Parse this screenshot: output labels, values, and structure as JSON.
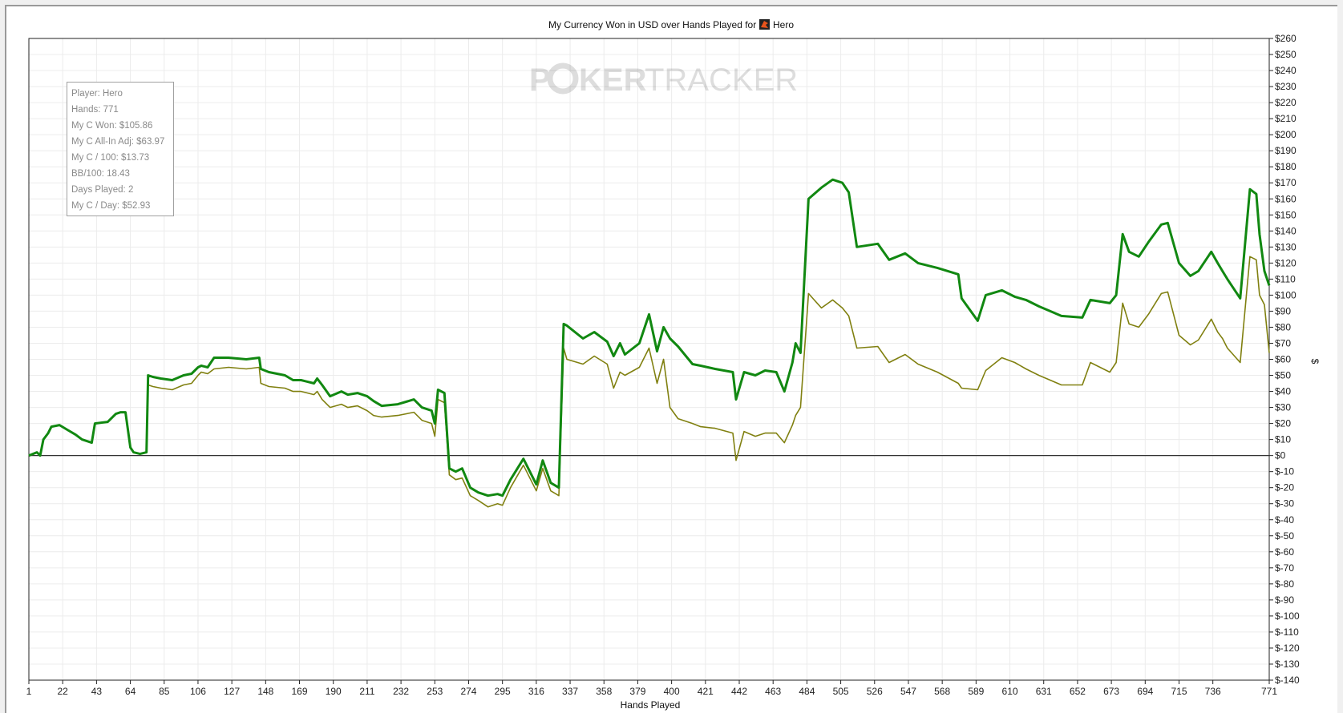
{
  "chart_data": {
    "type": "line",
    "title": "My Currency Won in USD over Hands Played for",
    "title_player": "Hero",
    "watermark_left": "P",
    "watermark_mid": "KER",
    "watermark_right": "TRACKER",
    "xlabel": "Hands Played",
    "ylabel": "$",
    "xlim": [
      1,
      771
    ],
    "ylim": [
      -140,
      260
    ],
    "x_ticks": [
      1,
      22,
      43,
      64,
      85,
      106,
      127,
      148,
      169,
      190,
      211,
      232,
      253,
      274,
      295,
      316,
      337,
      358,
      379,
      400,
      421,
      442,
      463,
      484,
      505,
      526,
      547,
      568,
      589,
      610,
      631,
      652,
      673,
      694,
      715,
      736,
      771
    ],
    "y_ticks": [
      260,
      250,
      240,
      230,
      220,
      210,
      200,
      190,
      180,
      170,
      160,
      150,
      140,
      130,
      120,
      110,
      100,
      90,
      80,
      70,
      60,
      50,
      40,
      30,
      20,
      10,
      0,
      -10,
      -20,
      -30,
      -40,
      -50,
      -60,
      -70,
      -80,
      -90,
      -100,
      -110,
      -120,
      -130,
      -140
    ],
    "y_tick_labels": [
      "$260",
      "$250",
      "$240",
      "$230",
      "$220",
      "$210",
      "$200",
      "$190",
      "$180",
      "$170",
      "$160",
      "$150",
      "$140",
      "$130",
      "$120",
      "$110",
      "$100",
      "$90",
      "$80",
      "$70",
      "$60",
      "$50",
      "$40",
      "$30",
      "$20",
      "$10",
      "$0",
      "$-10",
      "$-20",
      "$-30",
      "$-40",
      "$-50",
      "$-60",
      "$-70",
      "$-80",
      "$-90",
      "$-100",
      "$-110",
      "$-120",
      "$-130",
      "$-140"
    ],
    "grid": true,
    "colors": {
      "won": "#118811",
      "allin": "#808010",
      "zero_line": "#333333",
      "grid": "#ececec"
    },
    "series": [
      {
        "key": "won",
        "x": [
          1,
          6,
          8,
          10,
          13,
          15,
          20,
          25,
          30,
          34,
          40,
          42,
          50,
          55,
          58,
          61,
          64,
          66,
          70,
          74,
          75,
          78,
          83,
          90,
          97,
          102,
          106,
          108,
          112,
          116,
          125,
          136,
          144,
          145,
          150,
          160,
          165,
          170,
          178,
          180,
          183,
          188,
          195,
          199,
          205,
          211,
          215,
          220,
          230,
          240,
          245,
          251,
          253,
          255,
          259,
          262,
          266,
          270,
          275,
          280,
          286,
          292,
          295,
          300,
          308,
          316,
          320,
          325,
          330,
          333,
          335,
          345,
          352,
          360,
          364,
          368,
          371,
          380,
          386,
          391,
          395,
          399,
          404,
          413,
          418,
          427,
          438,
          440,
          445,
          452,
          458,
          465,
          470,
          475,
          477,
          480,
          485,
          493,
          500,
          506,
          510,
          515,
          528,
          535,
          545,
          553,
          565,
          578,
          580,
          590,
          595,
          605,
          613,
          620,
          628,
          635,
          642,
          655,
          660,
          672,
          676,
          680,
          684,
          690,
          696,
          704,
          708,
          715,
          722,
          727,
          735,
          739,
          742,
          745,
          753,
          759,
          763,
          765,
          768,
          771
        ],
        "y": [
          0,
          2,
          0,
          10,
          14,
          18,
          19,
          16,
          13,
          10,
          8,
          20,
          21,
          26,
          27,
          27,
          5,
          2,
          1,
          2,
          50,
          49,
          48,
          47,
          50,
          51,
          55,
          56,
          55,
          61,
          61,
          60,
          61,
          54,
          52,
          50,
          47,
          47,
          45,
          48,
          44,
          37,
          40,
          38,
          39,
          37,
          34,
          31,
          32,
          35,
          30,
          28,
          20,
          41,
          39,
          -8,
          -10,
          -8,
          -20,
          -23,
          -25,
          -24,
          -25,
          -15,
          -2,
          -18,
          -3,
          -17,
          -20,
          82,
          81,
          73,
          77,
          71,
          62,
          70,
          63,
          70,
          88,
          65,
          80,
          73,
          68,
          57,
          56,
          54,
          52,
          35,
          52,
          50,
          53,
          52,
          40,
          58,
          70,
          64,
          160,
          167,
          172,
          170,
          164,
          130,
          132,
          122,
          126,
          120,
          117,
          113,
          98,
          84,
          100,
          103,
          99,
          97,
          93,
          90,
          87,
          86,
          97,
          95,
          100,
          138,
          127,
          124,
          133,
          144,
          145,
          120,
          112,
          115,
          127,
          120,
          115,
          110,
          98,
          166,
          163,
          138,
          115,
          106
        ]
      },
      {
        "key": "allin",
        "x": [
          1,
          6,
          8,
          10,
          13,
          15,
          20,
          25,
          30,
          34,
          40,
          42,
          50,
          55,
          58,
          61,
          64,
          66,
          70,
          74,
          75,
          78,
          83,
          90,
          97,
          102,
          106,
          108,
          112,
          116,
          125,
          136,
          144,
          145,
          150,
          160,
          165,
          170,
          178,
          180,
          183,
          188,
          195,
          199,
          205,
          211,
          215,
          220,
          230,
          240,
          245,
          251,
          253,
          255,
          259,
          262,
          266,
          270,
          275,
          280,
          286,
          292,
          295,
          300,
          308,
          316,
          320,
          325,
          330,
          333,
          335,
          345,
          352,
          360,
          364,
          368,
          371,
          380,
          386,
          391,
          395,
          399,
          404,
          413,
          418,
          427,
          438,
          440,
          445,
          452,
          458,
          465,
          470,
          475,
          477,
          480,
          485,
          493,
          500,
          506,
          510,
          515,
          528,
          535,
          545,
          553,
          565,
          578,
          580,
          590,
          595,
          605,
          613,
          620,
          628,
          635,
          642,
          655,
          660,
          672,
          676,
          680,
          684,
          690,
          696,
          704,
          708,
          715,
          722,
          727,
          735,
          739,
          742,
          745,
          753,
          759,
          763,
          765,
          768,
          771
        ],
        "y": [
          0,
          2,
          0,
          10,
          14,
          18,
          19,
          16,
          13,
          10,
          8,
          20,
          21,
          26,
          27,
          27,
          5,
          2,
          1,
          2,
          44,
          43,
          42,
          41,
          44,
          45,
          50,
          52,
          51,
          54,
          55,
          54,
          55,
          45,
          43,
          42,
          40,
          40,
          38,
          40,
          35,
          30,
          32,
          30,
          31,
          28,
          25,
          24,
          25,
          27,
          22,
          20,
          12,
          35,
          33,
          -12,
          -15,
          -14,
          -25,
          -28,
          -32,
          -30,
          -31,
          -20,
          -6,
          -22,
          -8,
          -22,
          -25,
          67,
          60,
          57,
          62,
          57,
          42,
          52,
          50,
          55,
          67,
          45,
          60,
          30,
          23,
          20,
          18,
          17,
          14,
          -3,
          15,
          12,
          14,
          14,
          8,
          19,
          25,
          30,
          101,
          92,
          97,
          92,
          87,
          67,
          68,
          58,
          63,
          57,
          52,
          45,
          42,
          41,
          53,
          61,
          58,
          54,
          50,
          47,
          44,
          44,
          58,
          52,
          58,
          95,
          82,
          80,
          88,
          101,
          102,
          75,
          69,
          72,
          85,
          77,
          73,
          67,
          58,
          124,
          122,
          100,
          94,
          64
        ]
      }
    ]
  },
  "stats": {
    "player": "Player: Hero",
    "hands": "Hands: 771",
    "won": "My C Won: $105.86",
    "allin_adj": "My C All-In Adj: $63.97",
    "per100": "My C / 100: $13.73",
    "bb100": "BB/100: 18.43",
    "days": "Days Played: 2",
    "per_day": "My C / Day: $52.93"
  }
}
